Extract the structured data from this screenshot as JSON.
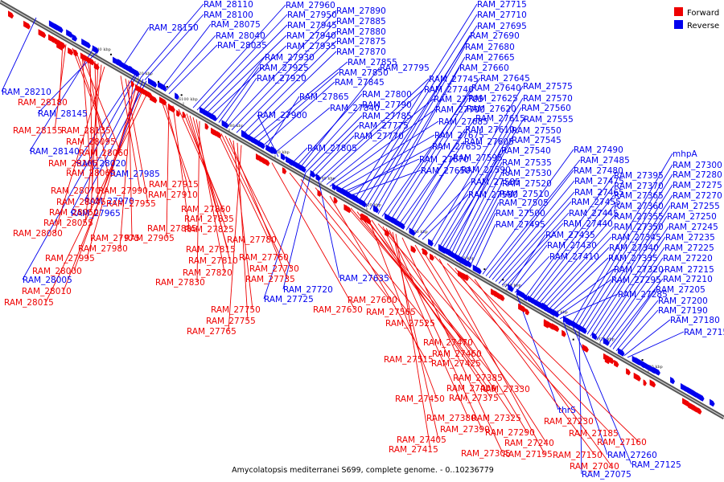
{
  "caption": "Amycolatopsis mediterranei S699, complete genome. - 0..10236779",
  "legend": [
    {
      "label": "Forward",
      "color": "#ee0000"
    },
    {
      "label": "Reverse",
      "color": "#0000ee"
    }
  ],
  "colors": {
    "forward": "#ee0000",
    "reverse": "#0000ee",
    "backbone": "#888888"
  },
  "ruler_marks": [
    "6140 kbp",
    "6120 kbp",
    "6100 kbp",
    "6080 kbp",
    "6060 kbp",
    "6040 kbp",
    "6020 kbp",
    "6000 kbp",
    "5980 kbp",
    "5960 kbp",
    "5940 kbp",
    "5920 kbp",
    "5900 kbp"
  ],
  "forward_labels": [
    "RAM_28180",
    "RAM_28155",
    "RAM_28135",
    "RAM_28095",
    "RAM_28060",
    "RAM_28105",
    "RAM_28065",
    "RAM_28070",
    "RAM_28045",
    "RAM_28050",
    "RAM_28055",
    "RAM_28080",
    "RAM_27990",
    "RAM_27955",
    "RAM_27975",
    "RAM_27980",
    "RAM_27995",
    "RAM_28000",
    "RAM_28010",
    "RAM_28015",
    "RAM_27915",
    "RAM_27910",
    "RAM_27905",
    "RAM_27895",
    "RAM_27860",
    "RAM_27835",
    "RAM_27825",
    "RAM_27815",
    "RAM_27810",
    "RAM_27820",
    "RAM_27830",
    "RAM_27780",
    "RAM_27760",
    "RAM_27730",
    "RAM_27735",
    "RAM_27750",
    "RAM_27755",
    "RAM_27765",
    "RAM_27630",
    "RAM_27600",
    "RAM_27565",
    "RAM_27525",
    "RAM_27515",
    "RAM_27470",
    "RAM_27460",
    "RAM_27425",
    "RAM_27385",
    "RAM_27400",
    "RAM_27450",
    "RAM_27375",
    "RAM_27330",
    "RAM_27380",
    "RAM_27325",
    "RAM_27390",
    "RAM_27405",
    "RAM_27415",
    "RAM_27305",
    "RAM_27290",
    "RAM_27240",
    "RAM_27230",
    "RAM_27195",
    "RAM_27185",
    "RAM_27150",
    "RAM_27160",
    "RAM_27040"
  ],
  "reverse_labels": [
    "RAM_28110",
    "RAM_28100",
    "RAM_28150",
    "RAM_28075",
    "RAM_28040",
    "RAM_28035",
    "RAM_28210",
    "RAM_28145",
    "RAM_28140",
    "RAM_28020",
    "RAM_27985",
    "RAM_27970",
    "RAM_27965",
    "RAM_28005",
    "RAM_27960",
    "RAM_27950",
    "RAM_27945",
    "RAM_27940",
    "RAM_27935",
    "RAM_27930",
    "RAM_27925",
    "RAM_27920",
    "RAM_27890",
    "RAM_27885",
    "RAM_27880",
    "RAM_27875",
    "RAM_27870",
    "RAM_27855",
    "RAM_27850",
    "RAM_27845",
    "RAM_27865",
    "RAM_27840",
    "RAM_27900",
    "RAM_27805",
    "RAM_27800",
    "RAM_27795",
    "RAM_27790",
    "RAM_27785",
    "RAM_27775",
    "RAM_27770",
    "RAM_27745",
    "RAM_27740",
    "RAM_27705",
    "RAM_27700",
    "RAM_27685",
    "RAM_27675",
    "RAM_27670",
    "RAM_27655",
    "RAM_27650",
    "RAM_27635",
    "RAM_27725",
    "RAM_27720",
    "RAM_27715",
    "RAM_27710",
    "RAM_27695",
    "RAM_27690",
    "RAM_27680",
    "RAM_27665",
    "RAM_27660",
    "RAM_27645",
    "RAM_27640",
    "RAM_27625",
    "RAM_27620",
    "RAM_27615",
    "RAM_27610",
    "RAM_27605",
    "RAM_27595",
    "RAM_27590",
    "RAM_27585",
    "RAM_27580",
    "RAM_27575",
    "RAM_27570",
    "RAM_27560",
    "RAM_27555",
    "RAM_27550",
    "RAM_27545",
    "RAM_27540",
    "RAM_27535",
    "RAM_27530",
    "RAM_27520",
    "RAM_27510",
    "RAM_27505",
    "RAM_27500",
    "RAM_27495",
    "RAM_27490",
    "RAM_27485",
    "RAM_27480",
    "RAM_27475",
    "RAM_27465",
    "RAM_27455",
    "RAM_27445",
    "RAM_27440",
    "RAM_27435",
    "RAM_27430",
    "RAM_27410",
    "RAM_27395",
    "RAM_27370",
    "RAM_27365",
    "RAM_27360",
    "RAM_27355",
    "RAM_27350",
    "RAM_27345",
    "RAM_27340",
    "RAM_27335",
    "RAM_27320",
    "RAM_27295",
    "RAM_27285",
    "mhpA",
    "RAM_27300",
    "RAM_27280",
    "RAM_27275",
    "RAM_27270",
    "RAM_27255",
    "RAM_27250",
    "RAM_27245",
    "RAM_27235",
    "RAM_27225",
    "RAM_27220",
    "RAM_27215",
    "RAM_27210",
    "RAM_27205",
    "RAM_27200",
    "RAM_27190",
    "RAM_27180",
    "RAM_27155",
    "thrS",
    "RAM_27260",
    "RAM_27125",
    "RAM_27075",
    "RAM_27115"
  ]
}
